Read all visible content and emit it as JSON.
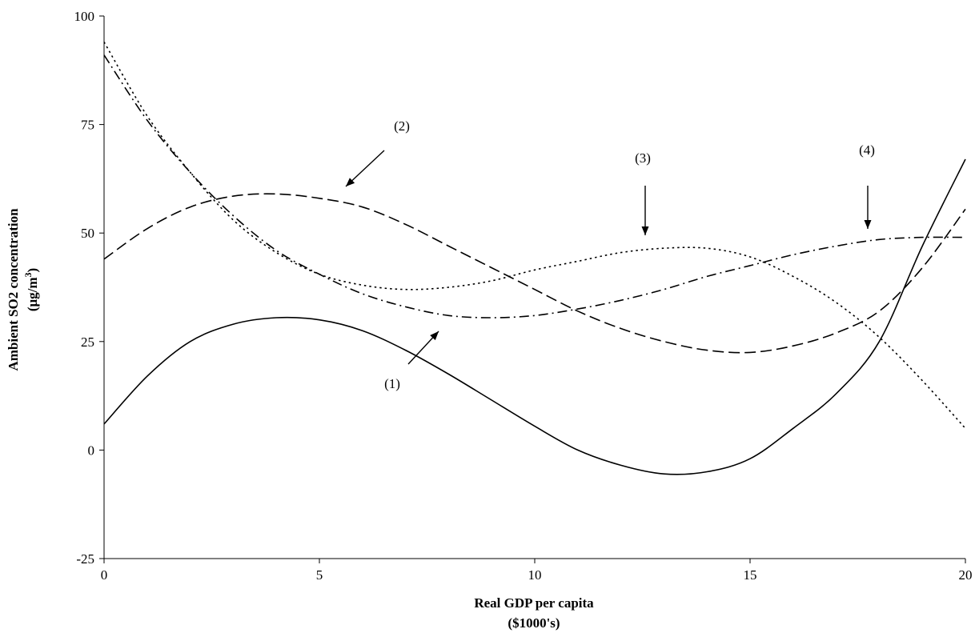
{
  "chart_data": {
    "type": "line",
    "xlabel": "Real GDP per capita",
    "xlabel_unit": "($1000's)",
    "ylabel": "Ambient SO2 concentration",
    "ylabel_unit_main": "(μg/m",
    "ylabel_unit_sup": "3",
    "ylabel_unit_close": ")",
    "xlim": [
      0,
      20
    ],
    "ylim": [
      -25,
      100
    ],
    "xticks": [
      0,
      5,
      10,
      15,
      20
    ],
    "yticks": [
      -25,
      0,
      25,
      50,
      75,
      100
    ],
    "grid": false,
    "legend": "none",
    "series": [
      {
        "id": "1",
        "style": "solid",
        "x": [
          0,
          1,
          2,
          3,
          4,
          5,
          6,
          7,
          8,
          9,
          10,
          11,
          12,
          13,
          14,
          15,
          16,
          17,
          18,
          19,
          20
        ],
        "y": [
          6,
          17,
          25,
          29,
          30.5,
          30,
          27.5,
          23,
          17.5,
          11.5,
          5.5,
          0,
          -3.5,
          -5.5,
          -5,
          -2,
          5,
          13,
          25,
          47,
          67
        ]
      },
      {
        "id": "2",
        "style": "dashed",
        "x": [
          0,
          1,
          2,
          3,
          4,
          5,
          6,
          7,
          8,
          9,
          10,
          11,
          12,
          13,
          14,
          15,
          16,
          17,
          18,
          19,
          20
        ],
        "y": [
          44,
          51,
          56,
          58.5,
          59,
          58,
          56,
          52,
          47,
          42,
          37,
          32,
          28,
          25,
          23,
          22.5,
          24,
          27,
          32,
          42,
          55.5
        ]
      },
      {
        "id": "3",
        "style": "dotted",
        "x": [
          0,
          1,
          2,
          3,
          4,
          5,
          6,
          7,
          8,
          9,
          10,
          11,
          12,
          13,
          14,
          15,
          16,
          17,
          18,
          19,
          20
        ],
        "y": [
          94,
          77,
          64,
          53,
          45.5,
          40.5,
          38,
          37,
          37.5,
          39,
          41.5,
          43.5,
          45.5,
          46.5,
          46.5,
          44.5,
          40,
          34,
          26,
          16,
          5
        ]
      },
      {
        "id": "4",
        "style": "dash-dot",
        "x": [
          0,
          1,
          2,
          3,
          4,
          5,
          6,
          7,
          8,
          9,
          10,
          11,
          12,
          13,
          14,
          15,
          16,
          17,
          18,
          19,
          20
        ],
        "y": [
          91,
          76,
          64,
          54,
          46,
          40.5,
          36,
          33,
          31,
          30.5,
          31,
          32.5,
          34.5,
          37,
          40,
          42.5,
          45,
          47,
          48.5,
          49,
          49
        ]
      }
    ],
    "annotations": [
      {
        "label": "(1)"
      },
      {
        "label": "(2)"
      },
      {
        "label": "(3)"
      },
      {
        "label": "(4)"
      }
    ]
  }
}
